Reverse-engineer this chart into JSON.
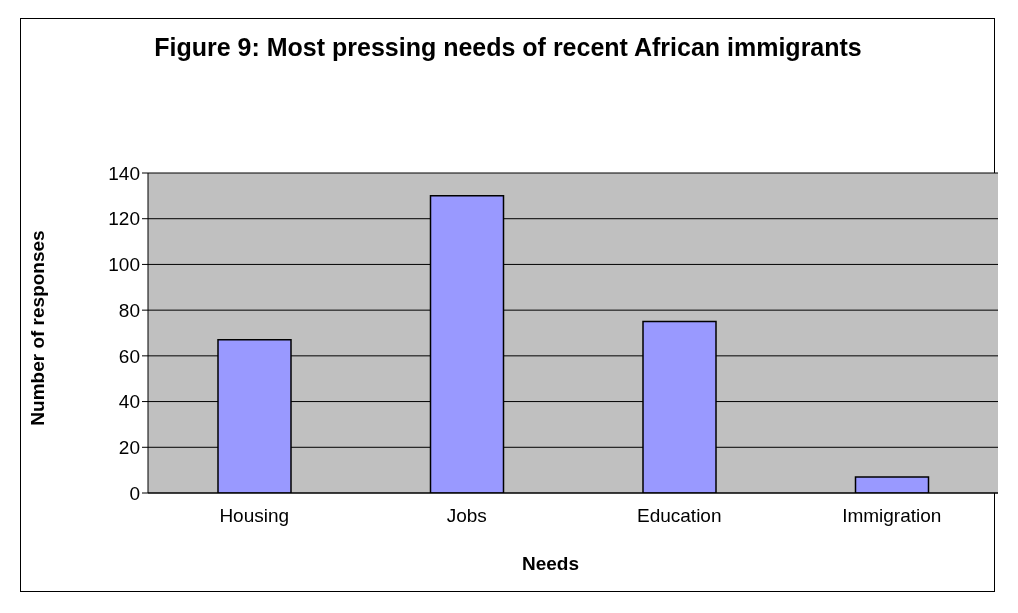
{
  "chart_data": {
    "type": "bar",
    "title": "Figure 9: Most pressing needs of recent African immigrants",
    "xlabel": "Needs",
    "ylabel": "Number of responses",
    "categories": [
      "Housing",
      "Jobs",
      "Education",
      "Immigration"
    ],
    "values": [
      67,
      130,
      75,
      7
    ],
    "color": "#9999ff",
    "ylim": [
      0,
      140
    ],
    "yticks": [
      0,
      20,
      40,
      60,
      80,
      100,
      120,
      140
    ],
    "grid": "y"
  }
}
